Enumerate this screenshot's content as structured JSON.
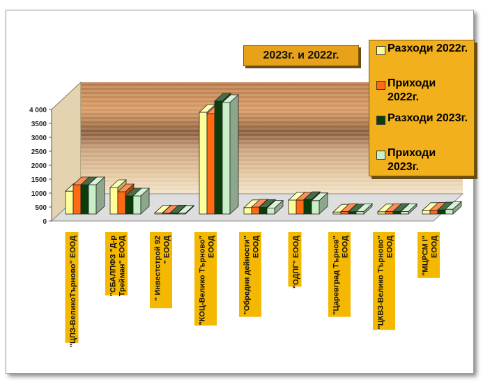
{
  "chart_data": {
    "type": "bar",
    "title": "2023г. и 2022г.",
    "categories": [
      "\"ЦПЗ-ВеликоТърново\" ЕООД",
      "\"СБАЛПФЗ \"Д-р Трейман\" ЕООД",
      "\" Инвестстрой 92 \" ЕООД",
      "\"КОЦ-Велико Търново\" ЕООД",
      "\"Обредни дейности\" ЕООД",
      "\"ОДПГ\" ЕООД",
      "\"Царевград Търнов\" ЕООД",
      "\"ЦКВЗ-Велико Търново\" ЕООД",
      "\"МЦРСМ I\" ЕООД"
    ],
    "series": [
      {
        "name": "Разходи 2022г.",
        "color": "#ffff99",
        "values": [
          820,
          950,
          40,
          3650,
          230,
          500,
          70,
          80,
          130
        ]
      },
      {
        "name": "Приходи 2022г.",
        "color": "#ff6a13",
        "values": [
          1050,
          800,
          30,
          3600,
          250,
          500,
          90,
          90,
          140
        ]
      },
      {
        "name": "Разходи 2023г.",
        "color": "#0b3d0b",
        "values": [
          1050,
          650,
          40,
          4050,
          240,
          520,
          80,
          100,
          150
        ]
      },
      {
        "name": "Приходи 2023г.",
        "color": "#c8efc8",
        "values": [
          1050,
          650,
          30,
          4000,
          210,
          480,
          90,
          90,
          170
        ]
      }
    ],
    "ylim": [
      0,
      4000
    ],
    "yticks": [
      "0",
      "500",
      "1000",
      "1500",
      "2000",
      "2500",
      "3000",
      "3500",
      "4 000"
    ],
    "legend_position": "top-right",
    "category_label_color": "#f5b800"
  }
}
